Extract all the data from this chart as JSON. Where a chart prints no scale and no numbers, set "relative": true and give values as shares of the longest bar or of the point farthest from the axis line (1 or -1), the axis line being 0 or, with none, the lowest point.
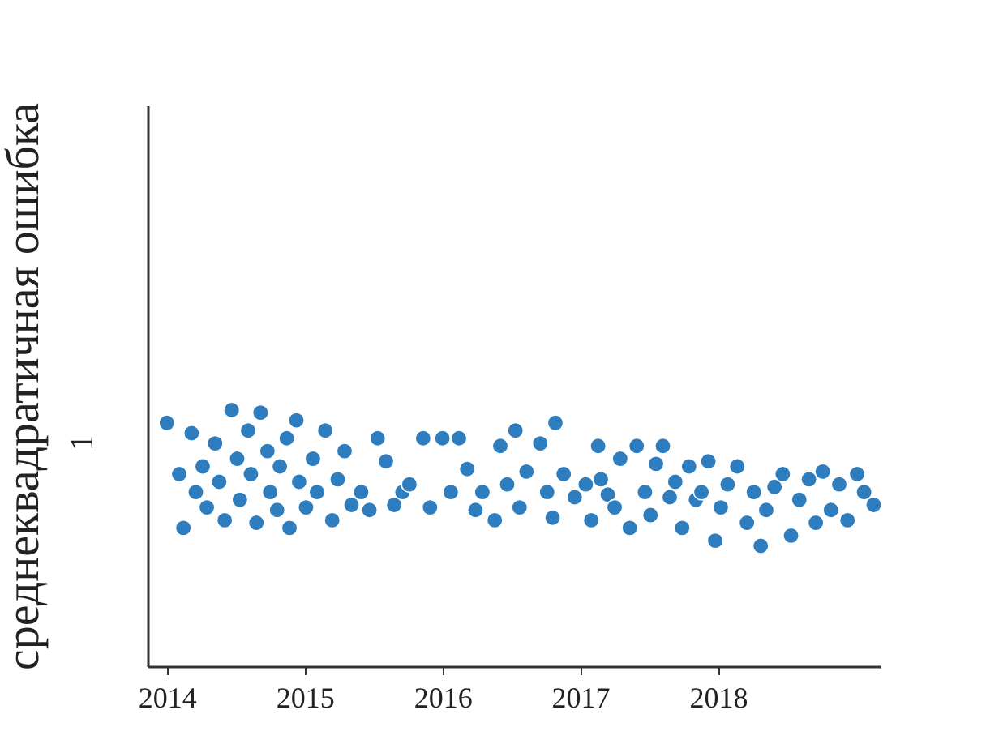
{
  "chart_data": {
    "type": "scatter",
    "ylabel": "среднеквадратичная ошибка",
    "relative": true,
    "marker": "circle",
    "xlim": [
      2013.86,
      2019.18
    ],
    "xticks": [
      2014,
      2015,
      2016,
      2017,
      2018
    ],
    "annotations": [
      "1"
    ],
    "series": [
      {
        "color": "#2e7ebf",
        "x": [
          2014.0,
          2014.09,
          2014.12,
          2014.18,
          2014.21,
          2014.26,
          2014.29,
          2014.35,
          2014.38,
          2014.42,
          2014.47,
          2014.51,
          2014.53,
          2014.59,
          2014.61,
          2014.65,
          2014.68,
          2014.73,
          2014.75,
          2014.8,
          2014.82,
          2014.87,
          2014.89,
          2014.94,
          2014.96,
          2015.01,
          2015.06,
          2015.09,
          2015.15,
          2015.2,
          2015.24,
          2015.29,
          2015.34,
          2015.41,
          2015.47,
          2015.53,
          2015.59,
          2015.65,
          2015.71,
          2015.76,
          2015.86,
          2015.91,
          2016.0,
          2016.06,
          2016.12,
          2016.18,
          2016.24,
          2016.29,
          2016.38,
          2016.42,
          2016.47,
          2016.53,
          2016.56,
          2016.61,
          2016.71,
          2016.76,
          2016.8,
          2016.82,
          2016.88,
          2016.96,
          2017.04,
          2017.08,
          2017.13,
          2017.15,
          2017.2,
          2017.25,
          2017.29,
          2017.36,
          2017.41,
          2017.47,
          2017.51,
          2017.55,
          2017.6,
          2017.65,
          2017.69,
          2017.74,
          2017.79,
          2017.84,
          2017.88,
          2017.93,
          2017.98,
          2018.02,
          2018.07,
          2018.14,
          2018.21,
          2018.26,
          2018.31,
          2018.35,
          2018.41,
          2018.47,
          2018.53,
          2018.59,
          2018.66,
          2018.71,
          2018.76,
          2018.82,
          2018.88,
          2018.94,
          2019.01,
          2019.06,
          2019.13
        ],
        "values": [
          0.95,
          0.75,
          0.54,
          0.91,
          0.68,
          0.78,
          0.62,
          0.87,
          0.72,
          0.57,
          1,
          0.81,
          0.65,
          0.92,
          0.75,
          0.56,
          0.99,
          0.84,
          0.68,
          0.61,
          0.78,
          0.89,
          0.54,
          0.96,
          0.72,
          0.62,
          0.81,
          0.68,
          0.92,
          0.57,
          0.73,
          0.84,
          0.63,
          0.68,
          0.61,
          0.89,
          0.8,
          0.63,
          0.68,
          0.71,
          0.89,
          0.62,
          0.89,
          0.68,
          0.89,
          0.77,
          0.61,
          0.68,
          0.57,
          0.86,
          0.71,
          0.92,
          0.62,
          0.76,
          0.87,
          0.68,
          0.58,
          0.95,
          0.75,
          0.66,
          0.71,
          0.57,
          0.86,
          0.73,
          0.67,
          0.62,
          0.81,
          0.54,
          0.86,
          0.68,
          0.59,
          0.79,
          0.86,
          0.66,
          0.72,
          0.54,
          0.78,
          0.65,
          0.68,
          0.8,
          0.49,
          0.62,
          0.71,
          0.78,
          0.56,
          0.68,
          0.47,
          0.61,
          0.7,
          0.75,
          0.51,
          0.65,
          0.73,
          0.56,
          0.76,
          0.61,
          0.71,
          0.57,
          0.75,
          0.68,
          0.63
        ]
      }
    ]
  }
}
